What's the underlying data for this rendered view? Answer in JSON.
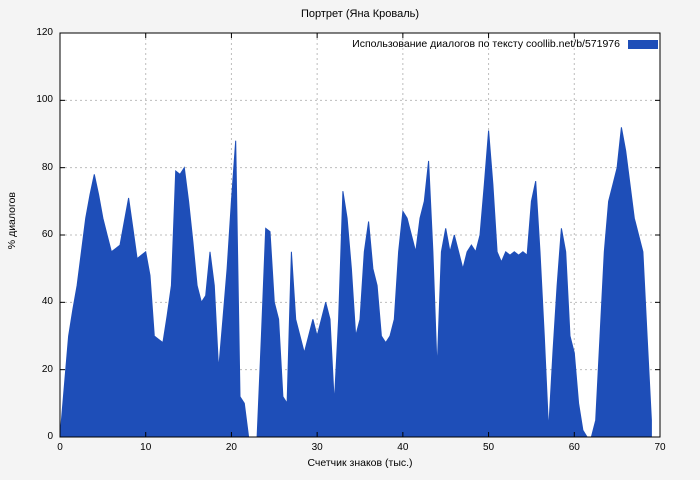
{
  "chart_data": {
    "type": "area",
    "title": "Портрет (Яна Кроваль)",
    "legend": "Использование диалогов по тексту coollib.net/b/571976",
    "xlabel": "Счетчик знаков (тыс.)",
    "ylabel": "% диалогов",
    "xlim": [
      0,
      70
    ],
    "ylim": [
      0,
      120
    ],
    "xticks": [
      0,
      10,
      20,
      30,
      40,
      50,
      60,
      70
    ],
    "yticks": [
      0,
      20,
      40,
      60,
      80,
      100,
      120
    ],
    "grid": "dashed",
    "legend_position": "top-right",
    "colors": {
      "fill": "#1e4eb8",
      "background": "#f4f4f4",
      "plot_bg": "#ffffff",
      "grid": "#bdbdbd",
      "axis": "#000000"
    },
    "x_start": 0,
    "x_step": 0.5,
    "values": [
      0,
      15,
      30,
      38,
      45,
      55,
      65,
      72,
      78,
      72,
      65,
      60,
      55,
      56,
      57,
      64,
      71,
      62,
      53,
      54,
      55,
      48,
      30,
      29,
      28,
      36,
      45,
      79,
      78,
      80,
      70,
      58,
      45,
      40,
      42,
      55,
      45,
      20,
      35,
      50,
      70,
      88,
      12,
      10,
      0,
      0,
      0,
      30,
      62,
      61,
      40,
      35,
      12,
      10,
      55,
      35,
      30,
      25,
      30,
      35,
      30,
      35,
      40,
      35,
      10,
      35,
      73,
      65,
      50,
      30,
      35,
      55,
      64,
      50,
      45,
      30,
      28,
      30,
      35,
      55,
      67,
      65,
      60,
      55,
      65,
      70,
      82,
      55,
      20,
      55,
      62,
      55,
      60,
      55,
      50,
      55,
      57,
      55,
      60,
      75,
      91,
      75,
      55,
      52,
      55,
      54,
      55,
      54,
      55,
      54,
      70,
      76,
      55,
      30,
      2,
      25,
      45,
      62,
      55,
      30,
      25,
      10,
      2,
      0,
      0,
      5,
      30,
      55,
      70,
      75,
      80,
      92,
      85,
      75,
      65,
      60,
      55,
      30,
      5
    ]
  }
}
